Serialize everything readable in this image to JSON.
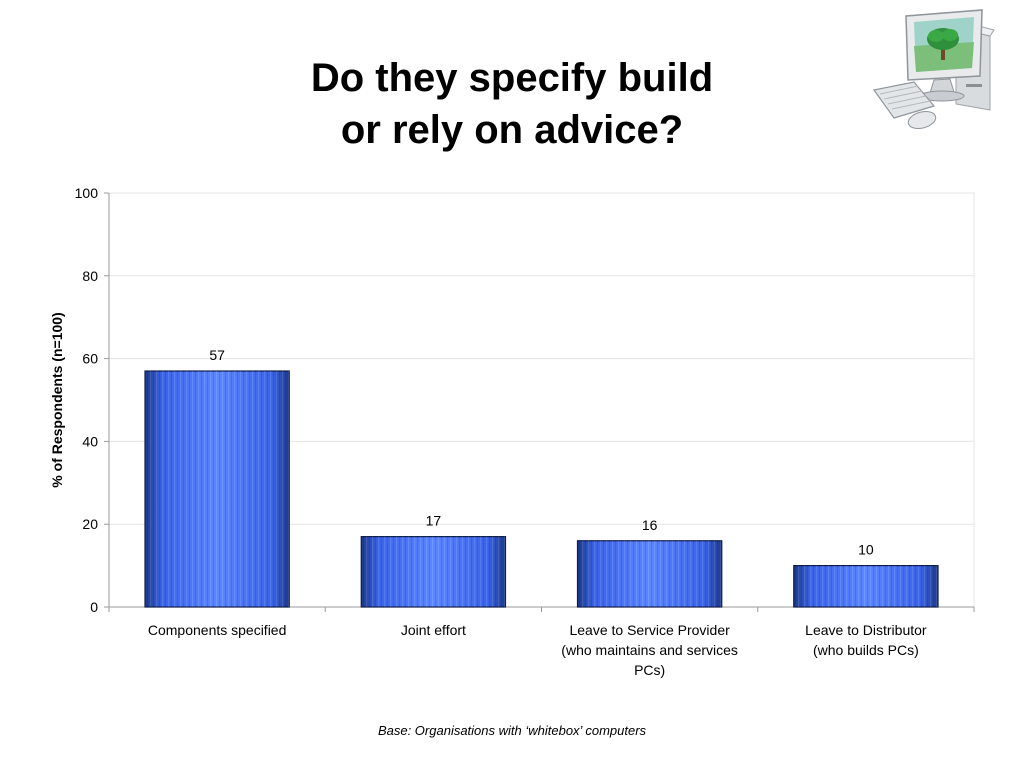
{
  "slide": {
    "title_line1": "Do they specify build",
    "title_line2": "or rely on advice?",
    "footnote": "Base:  Organisations with ‘whitebox’ computers",
    "illustration_icon": "desktop-computer-icon"
  },
  "colors": {
    "bar_dark": "#1d3a8a",
    "bar_mid": "#3a63e8",
    "bar_light": "#5b86ff",
    "bar_outline": "#0d1b4a",
    "grid": "#e4e4e4",
    "axis": "#9a9a9a"
  },
  "chart_data": {
    "type": "bar",
    "categories": [
      [
        "Components specified"
      ],
      [
        "Joint effort"
      ],
      [
        "Leave to Service Provider",
        "(who maintains and services",
        "PCs)"
      ],
      [
        "Leave to Distributor",
        "(who builds PCs)"
      ]
    ],
    "values": [
      57,
      17,
      16,
      10
    ],
    "data_labels": [
      "57",
      "17",
      "16",
      "10"
    ],
    "ylabel": "% of Respondents (n=100)",
    "xlabel": "",
    "ylim": [
      0,
      100
    ],
    "yticks": [
      0,
      20,
      40,
      60,
      80,
      100
    ],
    "grid": true,
    "legend": "none"
  }
}
